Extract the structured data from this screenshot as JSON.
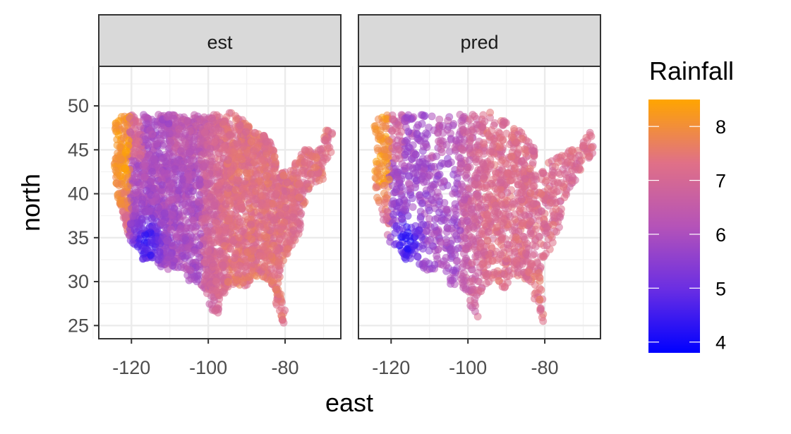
{
  "chart_data": {
    "type": "scatter",
    "facets": [
      "est",
      "pred"
    ],
    "xlabel": "east",
    "ylabel": "north",
    "xlim": [
      -128.5,
      -65.5
    ],
    "ylim": [
      23.5,
      54.5
    ],
    "x_ticks": [
      -120,
      -100,
      -80
    ],
    "x_tick_labels": [
      "-120",
      "-100",
      "-80"
    ],
    "y_ticks": [
      25,
      30,
      35,
      40,
      45,
      50
    ],
    "y_tick_labels": [
      "25",
      "30",
      "35",
      "40",
      "45",
      "50"
    ],
    "grid": true,
    "legend": {
      "title": "Rainfall",
      "position": "right",
      "range": [
        3.8,
        8.5
      ],
      "breaks": [
        4,
        5,
        6,
        7,
        8
      ],
      "break_labels": [
        "4",
        "5",
        "6",
        "7",
        "8"
      ],
      "colors": [
        "#0000ff",
        "#6a2ee3",
        "#b553b8",
        "#e07087",
        "#ffa500"
      ]
    },
    "point_alpha": 0.55,
    "representative_points": {
      "est": [
        {
          "x": -124,
          "y": 48,
          "v": 8.2
        },
        {
          "x": -123,
          "y": 44,
          "v": 8.1
        },
        {
          "x": -122,
          "y": 40,
          "v": 7.6
        },
        {
          "x": -118,
          "y": 46,
          "v": 7.2
        },
        {
          "x": -114,
          "y": 44,
          "v": 6.0
        },
        {
          "x": -112,
          "y": 41,
          "v": 5.6
        },
        {
          "x": -117,
          "y": 36,
          "v": 5.2
        },
        {
          "x": -115,
          "y": 33,
          "v": 4.2
        },
        {
          "x": -110,
          "y": 33,
          "v": 5.8
        },
        {
          "x": -106,
          "y": 35,
          "v": 5.7
        },
        {
          "x": -105,
          "y": 39,
          "v": 5.9
        },
        {
          "x": -104,
          "y": 46,
          "v": 6.3
        },
        {
          "x": -98,
          "y": 30,
          "v": 7.2
        },
        {
          "x": -97,
          "y": 42,
          "v": 6.8
        },
        {
          "x": -92,
          "y": 35,
          "v": 7.5
        },
        {
          "x": -88,
          "y": 41,
          "v": 7.3
        },
        {
          "x": -84,
          "y": 33,
          "v": 7.4
        },
        {
          "x": -81,
          "y": 27,
          "v": 7.3
        },
        {
          "x": -78,
          "y": 39,
          "v": 7.4
        },
        {
          "x": -72,
          "y": 43,
          "v": 7.6
        }
      ],
      "pred": [
        {
          "x": -124,
          "y": 47,
          "v": 8.0
        },
        {
          "x": -123,
          "y": 42,
          "v": 7.9
        },
        {
          "x": -121,
          "y": 38,
          "v": 6.9
        },
        {
          "x": -118,
          "y": 45,
          "v": 7.0
        },
        {
          "x": -113,
          "y": 43,
          "v": 5.7
        },
        {
          "x": -111,
          "y": 40,
          "v": 5.4
        },
        {
          "x": -117,
          "y": 36,
          "v": 5.0
        },
        {
          "x": -116,
          "y": 33,
          "v": 4.5
        },
        {
          "x": -109,
          "y": 34,
          "v": 5.6
        },
        {
          "x": -105,
          "y": 36,
          "v": 6.0
        },
        {
          "x": -104,
          "y": 40,
          "v": 6.1
        },
        {
          "x": -103,
          "y": 46,
          "v": 6.2
        },
        {
          "x": -97,
          "y": 30,
          "v": 7.0
        },
        {
          "x": -96,
          "y": 42,
          "v": 6.9
        },
        {
          "x": -91,
          "y": 35,
          "v": 7.2
        },
        {
          "x": -87,
          "y": 41,
          "v": 7.1
        },
        {
          "x": -83,
          "y": 33,
          "v": 7.1
        },
        {
          "x": -81,
          "y": 27,
          "v": 7.0
        },
        {
          "x": -77,
          "y": 39,
          "v": 7.1
        },
        {
          "x": -71,
          "y": 43,
          "v": 7.2
        }
      ]
    }
  }
}
